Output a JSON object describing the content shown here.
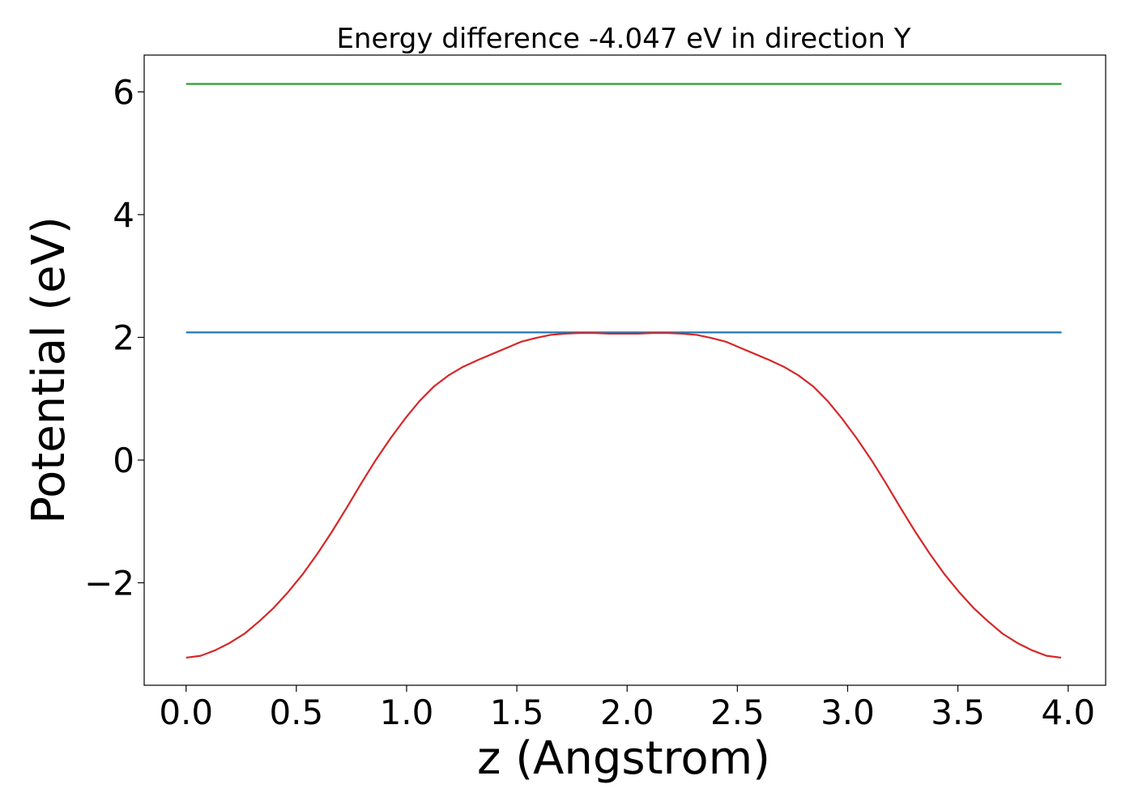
{
  "chart_data": {
    "type": "line",
    "title": "Energy difference -4.047 eV in direction Y",
    "xlabel": "z (Angstrom)",
    "ylabel": "Potential (eV)",
    "xlim": [
      -0.19,
      4.17
    ],
    "ylim": [
      -3.67,
      6.6
    ],
    "x_ticks": [
      0.0,
      0.5,
      1.0,
      1.5,
      2.0,
      2.5,
      3.0,
      3.5,
      4.0
    ],
    "x_tick_labels": [
      "0.0",
      "0.5",
      "1.0",
      "1.5",
      "2.0",
      "2.5",
      "3.0",
      "3.5",
      "4.0"
    ],
    "y_ticks": [
      -2,
      0,
      2,
      4,
      6
    ],
    "y_tick_labels": [
      "−2",
      "0",
      "2",
      "4",
      "6"
    ],
    "grid": false,
    "legend": "none",
    "series": [
      {
        "color": "#2ca02c",
        "x": [
          0.0,
          3.97
        ],
        "y": [
          6.13,
          6.13
        ]
      },
      {
        "color": "#1f77b4",
        "x": [
          0.0,
          3.97
        ],
        "y": [
          2.08,
          2.08
        ]
      },
      {
        "color": "#d62728",
        "x": [
          0.0,
          0.066,
          0.132,
          0.198,
          0.265,
          0.331,
          0.397,
          0.463,
          0.529,
          0.595,
          0.661,
          0.728,
          0.794,
          0.86,
          0.926,
          0.992,
          1.058,
          1.124,
          1.19,
          1.256,
          1.323,
          1.389,
          1.455,
          1.521,
          1.587,
          1.653,
          1.719,
          1.786,
          1.852,
          1.918,
          1.984,
          2.05,
          2.116,
          2.182,
          2.248,
          2.315,
          2.381,
          2.447,
          2.513,
          2.579,
          2.645,
          2.711,
          2.777,
          2.844,
          2.91,
          2.976,
          3.042,
          3.108,
          3.174,
          3.24,
          3.307,
          3.373,
          3.439,
          3.505,
          3.571,
          3.637,
          3.703,
          3.769,
          3.836,
          3.902,
          3.968
        ],
        "y": [
          -3.22,
          -3.19,
          -3.1,
          -2.98,
          -2.83,
          -2.63,
          -2.41,
          -2.15,
          -1.86,
          -1.53,
          -1.17,
          -0.78,
          -0.38,
          0.0,
          0.35,
          0.67,
          0.96,
          1.2,
          1.38,
          1.52,
          1.63,
          1.73,
          1.83,
          1.93,
          1.99,
          2.04,
          2.06,
          2.07,
          2.07,
          2.06,
          2.06,
          2.06,
          2.07,
          2.07,
          2.06,
          2.04,
          1.99,
          1.93,
          1.83,
          1.73,
          1.63,
          1.52,
          1.38,
          1.2,
          0.96,
          0.67,
          0.35,
          0.0,
          -0.38,
          -0.78,
          -1.17,
          -1.53,
          -1.86,
          -2.15,
          -2.41,
          -2.63,
          -2.83,
          -2.98,
          -3.1,
          -3.19,
          -3.22
        ]
      }
    ]
  }
}
